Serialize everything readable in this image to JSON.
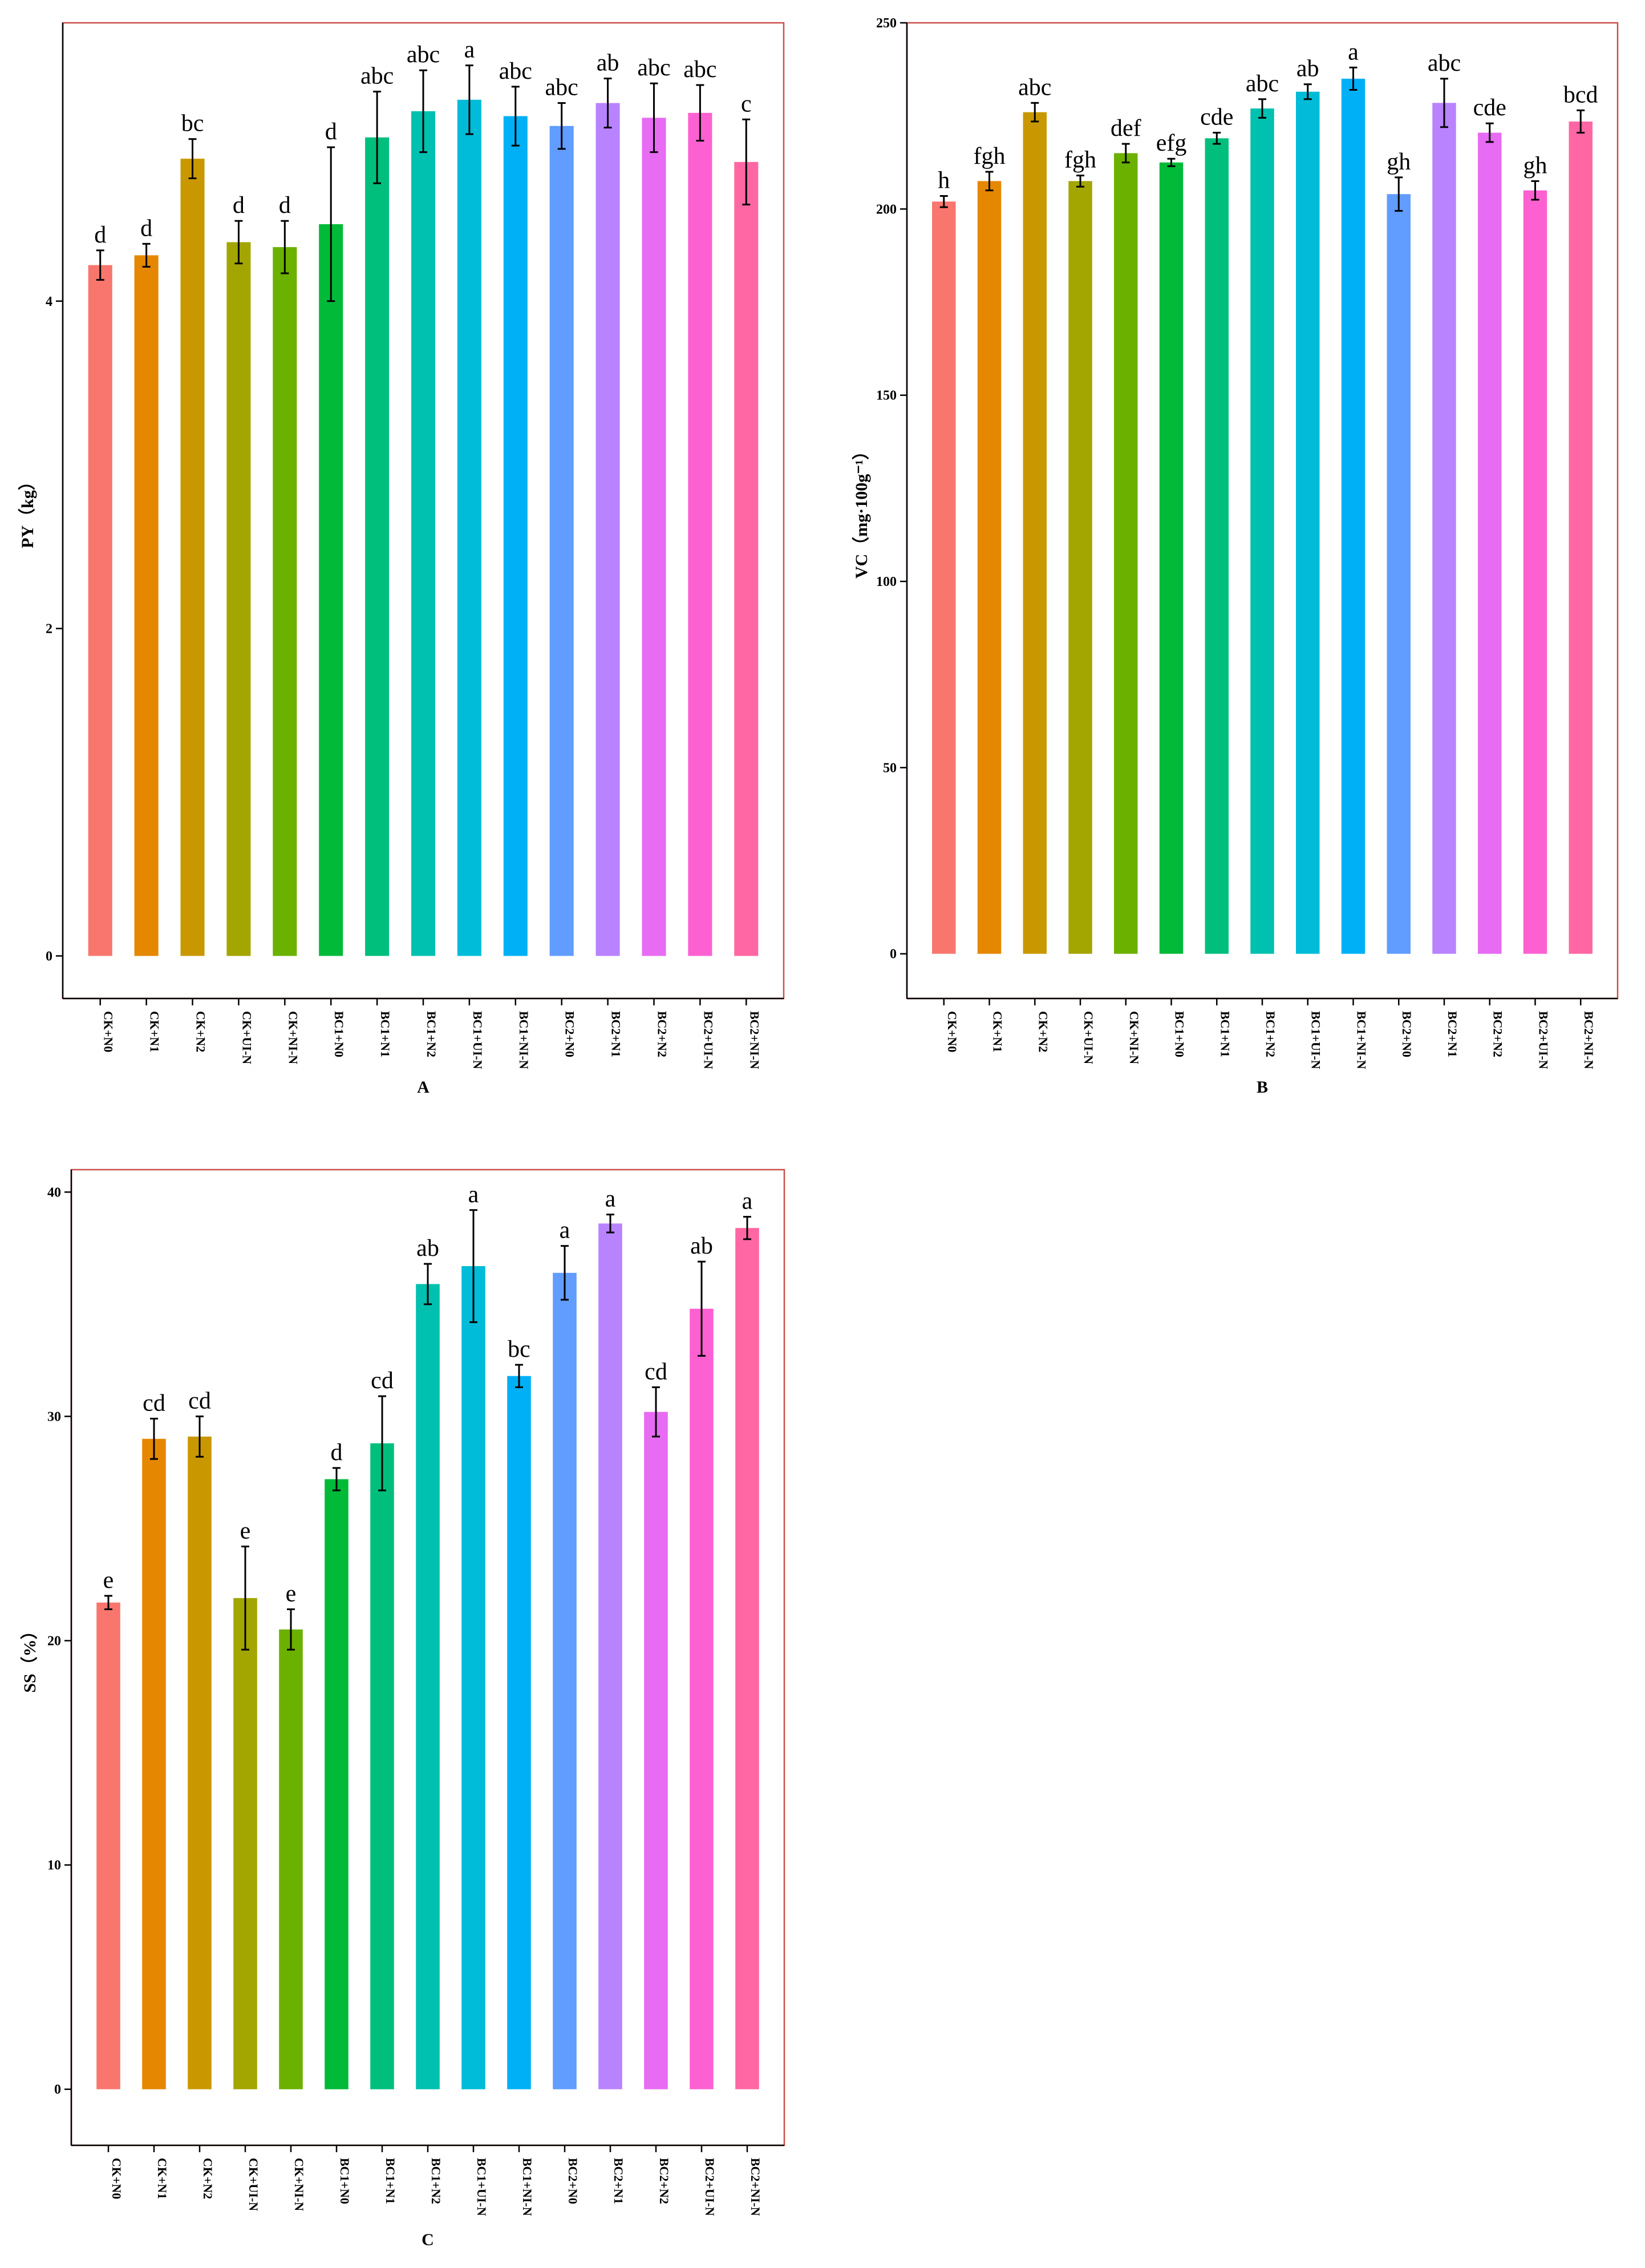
{
  "chart_data": [
    {
      "type": "bar",
      "panel": "A",
      "xlabel": "A",
      "ylabel": "PY（kg）",
      "ylim": [
        -0.26,
        5.7
      ],
      "yticks": [
        0,
        2,
        4
      ],
      "categories": [
        "CK+N0",
        "CK+N1",
        "CK+N2",
        "CK+UI-N",
        "CK+NI-N",
        "BC1+N0",
        "BC1+N1",
        "BC1+N2",
        "BC1+UI-N",
        "BC1+NI-N",
        "BC2+N0",
        "BC2+N1",
        "BC2+N2",
        "BC2+UI-N",
        "BC2+NI-N"
      ],
      "values": [
        4.22,
        4.28,
        4.87,
        4.36,
        4.33,
        4.47,
        5.0,
        5.16,
        5.23,
        5.13,
        5.07,
        5.21,
        5.12,
        5.15,
        4.85
      ],
      "errors": [
        0.09,
        0.07,
        0.12,
        0.13,
        0.16,
        0.47,
        0.28,
        0.25,
        0.21,
        0.18,
        0.14,
        0.15,
        0.21,
        0.17,
        0.26
      ],
      "labels": [
        "d",
        "d",
        "bc",
        "d",
        "d",
        "d",
        "abc",
        "abc",
        "a",
        "abc",
        "abc",
        "ab",
        "abc",
        "abc",
        "c"
      ]
    },
    {
      "type": "bar",
      "panel": "B",
      "xlabel": "B",
      "ylabel": "VC（mg·100g⁻¹）",
      "ylim": [
        -12,
        250
      ],
      "yticks": [
        0,
        50,
        100,
        150,
        200,
        250
      ],
      "categories": [
        "CK+N0",
        "CK+N1",
        "CK+N2",
        "CK+UI-N",
        "CK+NI-N",
        "BC1+N0",
        "BC1+N1",
        "BC1+N2",
        "BC1+UI-N",
        "BC1+NI-N",
        "BC2+N0",
        "BC2+N1",
        "BC2+N2",
        "BC2+UI-N",
        "BC2+NI-N"
      ],
      "values": [
        202,
        207.5,
        226,
        207.5,
        215,
        212.5,
        219,
        227,
        231.5,
        235,
        204,
        228.5,
        220.5,
        205,
        223.5
      ],
      "errors": [
        1.5,
        2.5,
        2.5,
        1.5,
        2.5,
        1,
        1.5,
        2.5,
        2,
        3,
        4.5,
        6.5,
        2.5,
        2.5,
        3
      ],
      "labels": [
        "h",
        "fgh",
        "abc",
        "fgh",
        "def",
        "efg",
        "cde",
        "abc",
        "ab",
        "a",
        "gh",
        "abc",
        "cde",
        "gh",
        "bcd"
      ]
    },
    {
      "type": "bar",
      "panel": "C",
      "xlabel": "C",
      "ylabel": "SS（%）",
      "ylim": [
        -2.5,
        41
      ],
      "yticks": [
        0,
        10,
        20,
        30,
        40
      ],
      "categories": [
        "CK+N0",
        "CK+N1",
        "CK+N2",
        "CK+UI-N",
        "CK+NI-N",
        "BC1+N0",
        "BC1+N1",
        "BC1+N2",
        "BC1+UI-N",
        "BC1+NI-N",
        "BC2+N0",
        "BC2+N1",
        "BC2+N2",
        "BC2+UI-N",
        "BC2+NI-N"
      ],
      "values": [
        21.7,
        29.0,
        29.1,
        21.9,
        20.5,
        27.2,
        28.8,
        35.9,
        36.7,
        31.8,
        36.4,
        38.6,
        30.2,
        34.8,
        38.4
      ],
      "errors": [
        0.3,
        0.9,
        0.9,
        2.3,
        0.9,
        0.5,
        2.1,
        0.9,
        2.5,
        0.5,
        1.2,
        0.4,
        1.1,
        2.1,
        0.5
      ],
      "labels": [
        "e",
        "cd",
        "cd",
        "e",
        "e",
        "d",
        "cd",
        "ab",
        "a",
        "bc",
        "a",
        "a",
        "cd",
        "ab",
        "a"
      ]
    }
  ],
  "colors": [
    "#f8766d",
    "#e58700",
    "#c99800",
    "#a3a500",
    "#6bb100",
    "#00ba38",
    "#00bf7d",
    "#00c0af",
    "#00bcd8",
    "#00b0f6",
    "#619cff",
    "#b983ff",
    "#e76bf3",
    "#fd61d1",
    "#ff67a4"
  ]
}
